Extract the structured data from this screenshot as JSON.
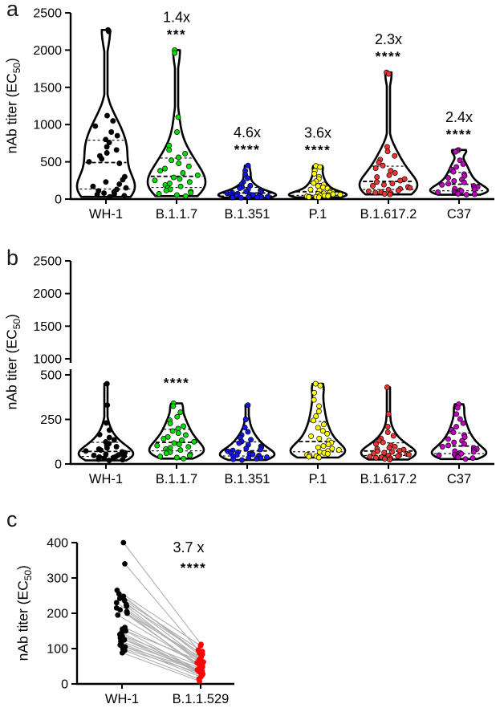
{
  "figure": {
    "panel_labels": [
      "a",
      "b",
      "c"
    ],
    "ylabel": {
      "pre": "nAb titer (EC",
      "sub": "50",
      "post": ")"
    }
  },
  "chart_data": [
    {
      "type": "violin",
      "panel": "a",
      "title": "",
      "xlabel": "",
      "ylabel": "nAb titer (EC50)",
      "ylim": [
        0,
        2500
      ],
      "yticks": [
        0,
        500,
        1000,
        1500,
        2000,
        2500
      ],
      "grid": false,
      "legend": false,
      "categories": [
        "WH-1",
        "B.1.1.7",
        "B.1.351",
        "P.1",
        "B.1.617.2",
        "C37"
      ],
      "colors": [
        "#000000",
        "#00dc00",
        "#1414ee",
        "#ffff00",
        "#ee3333",
        "#c000c0"
      ],
      "annotations": [
        {
          "category_index": 1,
          "fold": "1.4x",
          "stars": "***"
        },
        {
          "category_index": 2,
          "fold": "4.6x",
          "stars": "****"
        },
        {
          "category_index": 3,
          "fold": "3.6x",
          "stars": "****"
        },
        {
          "category_index": 4,
          "fold": "2.3x",
          "stars": "****"
        },
        {
          "category_index": 5,
          "fold": "2.4x",
          "stars": "****"
        }
      ],
      "series": [
        {
          "name": "WH-1",
          "values": [
            2270,
            2250,
            1120,
            1050,
            980,
            900,
            850,
            800,
            760,
            700,
            660,
            620,
            580,
            540,
            500,
            480,
            300,
            260,
            230,
            200,
            170,
            150,
            130,
            110,
            95,
            80,
            70,
            60,
            45,
            30
          ]
        },
        {
          "name": "B.1.1.7",
          "values": [
            2000,
            1960,
            1100,
            900,
            720,
            660,
            610,
            560,
            520,
            480,
            440,
            410,
            380,
            350,
            320,
            290,
            270,
            250,
            230,
            210,
            190,
            170,
            150,
            130,
            115,
            100,
            85,
            70,
            55,
            40
          ]
        },
        {
          "name": "B.1.351",
          "values": [
            450,
            380,
            330,
            280,
            230,
            200,
            180,
            160,
            145,
            130,
            120,
            110,
            100,
            92,
            85,
            78,
            72,
            66,
            60,
            55,
            50,
            46,
            42,
            38,
            34,
            30,
            27,
            24,
            21,
            18
          ]
        },
        {
          "name": "P.1",
          "values": [
            445,
            430,
            380,
            340,
            300,
            270,
            240,
            215,
            195,
            175,
            158,
            142,
            128,
            115,
            104,
            94,
            86,
            78,
            71,
            65,
            59,
            54,
            49,
            45,
            41,
            37,
            33,
            30,
            27,
            24
          ]
        },
        {
          "name": "B.1.617.2",
          "values": [
            1700,
            1680,
            700,
            640,
            580,
            530,
            490,
            450,
            415,
            380,
            350,
            320,
            295,
            270,
            248,
            228,
            210,
            193,
            178,
            164,
            150,
            138,
            126,
            115,
            105,
            95,
            86,
            78,
            70,
            62
          ]
        },
        {
          "name": "C37",
          "values": [
            660,
            650,
            635,
            520,
            470,
            430,
            395,
            365,
            335,
            310,
            285,
            262,
            242,
            224,
            207,
            191,
            177,
            163,
            151,
            139,
            128,
            118,
            109,
            100,
            92,
            85,
            78,
            71,
            65,
            58
          ]
        }
      ]
    },
    {
      "type": "violin",
      "panel": "b",
      "title": "",
      "xlabel": "",
      "ylabel": "nAb titer (EC50)",
      "ylim": [
        0,
        2500
      ],
      "axis_break": {
        "lower": {
          "domain": [
            0,
            500
          ],
          "ticks": [
            0,
            250,
            500
          ]
        },
        "upper": {
          "domain": [
            1000,
            2500
          ],
          "ticks": [
            1000,
            1500,
            2000,
            2500
          ]
        }
      },
      "grid": false,
      "legend": false,
      "categories": [
        "WH-1",
        "B.1.1.7",
        "B.1.351",
        "P.1",
        "B.1.617.2",
        "C37"
      ],
      "colors": [
        "#000000",
        "#00dc00",
        "#1414ee",
        "#ffff00",
        "#ee3333",
        "#c000c0"
      ],
      "annotations": [
        {
          "category_index": 1,
          "fold": "",
          "stars": "****"
        }
      ],
      "series": [
        {
          "name": "WH-1",
          "values": [
            450,
            330,
            230,
            190,
            165,
            148,
            135,
            124,
            114,
            105,
            97,
            90,
            84,
            78,
            73,
            68,
            63,
            59,
            55,
            51,
            48,
            45,
            42,
            39,
            36,
            33,
            30,
            27,
            24,
            20
          ]
        },
        {
          "name": "B.1.1.7",
          "values": [
            340,
            325,
            290,
            265,
            245,
            228,
            212,
            198,
            185,
            173,
            162,
            152,
            142,
            133,
            125,
            117,
            110,
            103,
            96,
            90,
            84,
            78,
            72,
            66,
            60,
            54,
            48,
            42,
            36,
            30
          ]
        },
        {
          "name": "B.1.351",
          "values": [
            330,
            250,
            205,
            180,
            162,
            148,
            136,
            126,
            117,
            108,
            100,
            93,
            87,
            81,
            76,
            71,
            66,
            62,
            58,
            54,
            50,
            47,
            44,
            41,
            38,
            35,
            32,
            29,
            26,
            22
          ]
        },
        {
          "name": "P.1",
          "values": [
            450,
            440,
            400,
            360,
            325,
            295,
            268,
            244,
            222,
            203,
            186,
            170,
            156,
            143,
            131,
            120,
            110,
            101,
            93,
            86,
            79,
            73,
            67,
            62,
            57,
            52,
            48,
            44,
            40,
            36
          ]
        },
        {
          "name": "B.1.617.2",
          "values": [
            430,
            280,
            210,
            178,
            158,
            143,
            131,
            121,
            112,
            104,
            97,
            91,
            85,
            80,
            75,
            71,
            67,
            63,
            59,
            56,
            53,
            50,
            47,
            44,
            41,
            38,
            35,
            32,
            29,
            25
          ]
        },
        {
          "name": "C37",
          "values": [
            335,
            315,
            280,
            252,
            229,
            209,
            192,
            177,
            163,
            151,
            140,
            130,
            121,
            112,
            104,
            97,
            90,
            84,
            78,
            72,
            67,
            62,
            57,
            53,
            49,
            45,
            41,
            37,
            33,
            28
          ]
        }
      ]
    },
    {
      "type": "paired-scatter",
      "panel": "c",
      "title": "",
      "xlabel": "",
      "ylabel": "nAb titer (EC50)",
      "ylim": [
        0,
        400
      ],
      "yticks": [
        0,
        100,
        200,
        300,
        400
      ],
      "grid": false,
      "legend": false,
      "categories": [
        "WH-1",
        "B.1.1.529"
      ],
      "colors": [
        "#000000",
        "#ff0000"
      ],
      "line_color": "#b0b0b0",
      "annotation": {
        "fold": "3.7 x",
        "stars": "****"
      },
      "pairs": [
        [
          400,
          112
        ],
        [
          340,
          96
        ],
        [
          265,
          108
        ],
        [
          255,
          88
        ],
        [
          248,
          78
        ],
        [
          242,
          70
        ],
        [
          236,
          92
        ],
        [
          230,
          62
        ],
        [
          225,
          84
        ],
        [
          220,
          56
        ],
        [
          215,
          75
        ],
        [
          210,
          50
        ],
        [
          205,
          68
        ],
        [
          200,
          45
        ],
        [
          195,
          60
        ],
        [
          160,
          54
        ],
        [
          155,
          40
        ],
        [
          150,
          64
        ],
        [
          145,
          36
        ],
        [
          140,
          48
        ],
        [
          135,
          32
        ],
        [
          130,
          44
        ],
        [
          125,
          28
        ],
        [
          120,
          40
        ],
        [
          115,
          24
        ],
        [
          110,
          36
        ],
        [
          105,
          20
        ],
        [
          100,
          30
        ],
        [
          95,
          14
        ],
        [
          88,
          8
        ]
      ]
    }
  ]
}
